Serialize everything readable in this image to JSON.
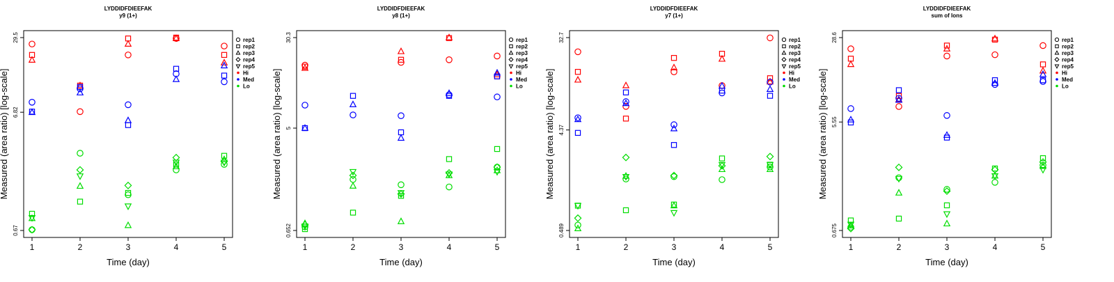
{
  "chart_data": [
    {
      "type": "scatter",
      "title": "LYDDIDFDIEEFAK",
      "subtitle": "y9 (1+)",
      "xlabel": "Time (day)",
      "ylabel": "Measured (area ratio) [log-scale]",
      "x_ticks": [
        1,
        2,
        3,
        4,
        5
      ],
      "y_ticks": [
        0.67,
        6.82,
        29.5
      ],
      "ylim": [
        0.67,
        29.5
      ],
      "log_y": true,
      "legend_position": "right",
      "series": [
        {
          "group": "Hi",
          "rep": "rep1",
          "x": [
            1,
            2,
            3,
            4,
            5
          ],
          "y": [
            26,
            6.9,
            21,
            29,
            25
          ]
        },
        {
          "group": "Hi",
          "rep": "rep2",
          "x": [
            1,
            2,
            3,
            4,
            5
          ],
          "y": [
            21,
            11.5,
            29,
            29.5,
            21
          ]
        },
        {
          "group": "Hi",
          "rep": "rep3",
          "x": [
            1,
            2,
            3,
            4,
            5
          ],
          "y": [
            19,
            11.5,
            26,
            29,
            18
          ]
        },
        {
          "group": "Med",
          "rep": "rep1",
          "x": [
            1,
            2,
            3,
            4,
            5
          ],
          "y": [
            8.3,
            10.8,
            7.9,
            14.5,
            12.4
          ]
        },
        {
          "group": "Med",
          "rep": "rep2",
          "x": [
            1,
            2,
            3,
            4,
            5
          ],
          "y": [
            6.9,
            11.2,
            5.3,
            16,
            14
          ]
        },
        {
          "group": "Med",
          "rep": "rep3",
          "x": [
            1,
            2,
            3,
            4,
            5
          ],
          "y": [
            6.8,
            10,
            5.8,
            13,
            17
          ]
        },
        {
          "group": "Lo",
          "rep": "rep1",
          "x": [
            1,
            2,
            3,
            4,
            5
          ],
          "y": [
            0.68,
            3.05,
            1.35,
            2.2,
            2.45
          ]
        },
        {
          "group": "Lo",
          "rep": "rep2",
          "x": [
            1,
            2,
            3,
            4,
            5
          ],
          "y": [
            0.93,
            1.18,
            1.4,
            2.45,
            2.9
          ]
        },
        {
          "group": "Lo",
          "rep": "rep3",
          "x": [
            1,
            2,
            3,
            4,
            5
          ],
          "y": [
            0.85,
            1.6,
            0.74,
            2.35,
            2.7
          ]
        },
        {
          "group": "Lo",
          "rep": "rep4",
          "x": [
            1,
            2,
            3,
            4,
            5
          ],
          "y": [
            0.68,
            2.2,
            1.62,
            2.8,
            2.6
          ]
        },
        {
          "group": "Lo",
          "rep": "rep5",
          "x": [
            1,
            2,
            3,
            4,
            5
          ],
          "y": [
            0.86,
            1.95,
            1.08,
            2.55,
            2.55
          ]
        }
      ]
    },
    {
      "type": "scatter",
      "title": "LYDDIDFDIEEFAK",
      "subtitle": "y8 (1+)",
      "xlabel": "Time (day)",
      "ylabel": "Measured (area ratio) [log-scale]",
      "x_ticks": [
        1,
        2,
        3,
        4,
        5
      ],
      "y_ticks": [
        0.652,
        5,
        30.3
      ],
      "ylim": [
        0.652,
        30.3
      ],
      "log_y": true,
      "legend_position": "right",
      "series": [
        {
          "group": "Hi",
          "rep": "rep1",
          "x": [
            1,
            2,
            3,
            4,
            5
          ],
          "y": [
            17.5,
            null,
            18.5,
            19.5,
            21
          ]
        },
        {
          "group": "Hi",
          "rep": "rep2",
          "x": [
            1,
            2,
            3,
            4,
            5
          ],
          "y": [
            17,
            null,
            19.5,
            30,
            14
          ]
        },
        {
          "group": "Hi",
          "rep": "rep3",
          "x": [
            1,
            2,
            3,
            4,
            5
          ],
          "y": [
            16.5,
            null,
            23,
            30.3,
            14.5
          ]
        },
        {
          "group": "Med",
          "rep": "rep1",
          "x": [
            1,
            2,
            3,
            4,
            5
          ],
          "y": [
            7.9,
            6.5,
            6.4,
            9.7,
            9.3
          ]
        },
        {
          "group": "Med",
          "rep": "rep2",
          "x": [
            1,
            2,
            3,
            4,
            5
          ],
          "y": [
            5,
            9.5,
            4.6,
            9.5,
            14
          ]
        },
        {
          "group": "Med",
          "rep": "rep3",
          "x": [
            1,
            2,
            3,
            4,
            5
          ],
          "y": [
            5,
            8,
            4.1,
            10,
            15
          ]
        },
        {
          "group": "Lo",
          "rep": "rep1",
          "x": [
            1,
            2,
            3,
            4,
            5
          ],
          "y": [
            0.7,
            1.8,
            1.62,
            1.55,
            2.3
          ]
        },
        {
          "group": "Lo",
          "rep": "rep2",
          "x": [
            1,
            2,
            3,
            4,
            5
          ],
          "y": [
            0.67,
            0.93,
            1.3,
            2.7,
            3.3
          ]
        },
        {
          "group": "Lo",
          "rep": "rep3",
          "x": [
            1,
            2,
            3,
            4,
            5
          ],
          "y": [
            0.75,
            1.58,
            0.78,
            1.95,
            2.15
          ]
        },
        {
          "group": "Lo",
          "rep": "rep4",
          "x": [
            1,
            2,
            3,
            4,
            5
          ],
          "y": [
            0.73,
            1.95,
            1.35,
            2.05,
            2.3
          ]
        },
        {
          "group": "Lo",
          "rep": "rep5",
          "x": [
            1,
            2,
            3,
            4,
            5
          ],
          "y": [
            0.71,
            2.1,
            1.38,
            2.0,
            2.1
          ]
        }
      ]
    },
    {
      "type": "scatter",
      "title": "LYDDIDFDIEEFAK",
      "subtitle": "y7 (1+)",
      "xlabel": "Time (day)",
      "ylabel": "Measured (area ratio) [log-scale]",
      "x_ticks": [
        1,
        2,
        3,
        4,
        5
      ],
      "y_ticks": [
        0.489,
        4.37,
        32.7
      ],
      "ylim": [
        0.489,
        32.7
      ],
      "log_y": true,
      "legend_position": "right",
      "series": [
        {
          "group": "Hi",
          "rep": "rep1",
          "x": [
            1,
            2,
            3,
            4,
            5
          ],
          "y": [
            24,
            7.3,
            15.5,
            11.5,
            32.5
          ]
        },
        {
          "group": "Hi",
          "rep": "rep2",
          "x": [
            1,
            2,
            3,
            4,
            5
          ],
          "y": [
            15.5,
            5.6,
            21,
            23,
            13.5
          ]
        },
        {
          "group": "Hi",
          "rep": "rep3",
          "x": [
            1,
            2,
            3,
            4,
            5
          ],
          "y": [
            13,
            11.5,
            17,
            20.5,
            12.5
          ]
        },
        {
          "group": "Med",
          "rep": "rep1",
          "x": [
            1,
            2,
            3,
            4,
            5
          ],
          "y": [
            5.7,
            8.1,
            4.9,
            9.8,
            12.4
          ]
        },
        {
          "group": "Med",
          "rep": "rep2",
          "x": [
            1,
            2,
            3,
            4,
            5
          ],
          "y": [
            4.1,
            9.9,
            3.15,
            10.3,
            9.2
          ]
        },
        {
          "group": "Med",
          "rep": "rep3",
          "x": [
            1,
            2,
            3,
            4,
            5
          ],
          "y": [
            5.5,
            7.8,
            4.5,
            11.4,
            10.6
          ]
        },
        {
          "group": "Lo",
          "rep": "rep1",
          "x": [
            1,
            2,
            3,
            4,
            5
          ],
          "y": [
            0.55,
            1.5,
            1.58,
            1.48,
            1.95
          ]
        },
        {
          "group": "Lo",
          "rep": "rep2",
          "x": [
            1,
            2,
            3,
            4,
            5
          ],
          "y": [
            0.84,
            0.76,
            0.86,
            2.35,
            2.05
          ]
        },
        {
          "group": "Lo",
          "rep": "rep3",
          "x": [
            1,
            2,
            3,
            4,
            5
          ],
          "y": [
            0.51,
            1.6,
            0.84,
            1.85,
            1.85
          ]
        },
        {
          "group": "Lo",
          "rep": "rep4",
          "x": [
            1,
            2,
            3,
            4,
            5
          ],
          "y": [
            0.64,
            2.4,
            1.62,
            2.0,
            2.45
          ]
        },
        {
          "group": "Lo",
          "rep": "rep5",
          "x": [
            1,
            2,
            3,
            4,
            5
          ],
          "y": [
            0.84,
            1.58,
            0.72,
            2.05,
            2.05
          ]
        }
      ]
    },
    {
      "type": "scatter",
      "title": "LYDDIDFDIEEFAK",
      "subtitle": "sum of Ions",
      "xlabel": "Time (day)",
      "ylabel": "Measured (area ratio) [log-scale]",
      "x_ticks": [
        1,
        2,
        3,
        4,
        5
      ],
      "y_ticks": [
        0.675,
        5.55,
        28.6
      ],
      "ylim": [
        0.675,
        28.6
      ],
      "log_y": true,
      "legend_position": "right",
      "series": [
        {
          "group": "Hi",
          "rep": "rep1",
          "x": [
            1,
            2,
            3,
            4,
            5
          ],
          "y": [
            23,
            7.5,
            20,
            20.5,
            24.5
          ]
        },
        {
          "group": "Hi",
          "rep": "rep2",
          "x": [
            1,
            2,
            3,
            4,
            5
          ],
          "y": [
            19,
            9.2,
            24.5,
            27.5,
            17
          ]
        },
        {
          "group": "Hi",
          "rep": "rep3",
          "x": [
            1,
            2,
            3,
            4,
            5
          ],
          "y": [
            17,
            8.6,
            23,
            28,
            15
          ]
        },
        {
          "group": "Med",
          "rep": "rep1",
          "x": [
            1,
            2,
            3,
            4,
            5
          ],
          "y": [
            7.2,
            8.8,
            6.3,
            11.5,
            12.2
          ]
        },
        {
          "group": "Med",
          "rep": "rep2",
          "x": [
            1,
            2,
            3,
            4,
            5
          ],
          "y": [
            5.5,
            10.3,
            4.1,
            12.5,
            12.5
          ]
        },
        {
          "group": "Med",
          "rep": "rep3",
          "x": [
            1,
            2,
            3,
            4,
            5
          ],
          "y": [
            5.8,
            8.5,
            4.3,
            11.8,
            14
          ]
        },
        {
          "group": "Lo",
          "rep": "rep1",
          "x": [
            1,
            2,
            3,
            4,
            5
          ],
          "y": [
            0.72,
            1.88,
            1.5,
            1.72,
            2.4
          ]
        },
        {
          "group": "Lo",
          "rep": "rep2",
          "x": [
            1,
            2,
            3,
            4,
            5
          ],
          "y": [
            0.82,
            0.85,
            1.1,
            2.25,
            2.75
          ]
        },
        {
          "group": "Lo",
          "rep": "rep3",
          "x": [
            1,
            2,
            3,
            4,
            5
          ],
          "y": [
            0.74,
            1.4,
            0.77,
            1.95,
            2.35
          ]
        },
        {
          "group": "Lo",
          "rep": "rep4",
          "x": [
            1,
            2,
            3,
            4,
            5
          ],
          "y": [
            0.7,
            2.3,
            1.45,
            2.2,
            2.55
          ]
        },
        {
          "group": "Lo",
          "rep": "rep5",
          "x": [
            1,
            2,
            3,
            4,
            5
          ],
          "y": [
            0.76,
            1.85,
            0.93,
            1.95,
            2.2
          ]
        }
      ]
    }
  ],
  "legend": {
    "reps": [
      "rep1",
      "rep2",
      "rep3",
      "rep4",
      "rep5"
    ],
    "groups": [
      "Hi",
      "Med",
      "Lo"
    ]
  },
  "colors": {
    "Hi": "#ff0000",
    "Med": "#0000ff",
    "Lo": "#00dd00"
  },
  "rep_shapes": {
    "rep1": "circle",
    "rep2": "square",
    "rep3": "triangle-up",
    "rep4": "diamond",
    "rep5": "triangle-down"
  }
}
